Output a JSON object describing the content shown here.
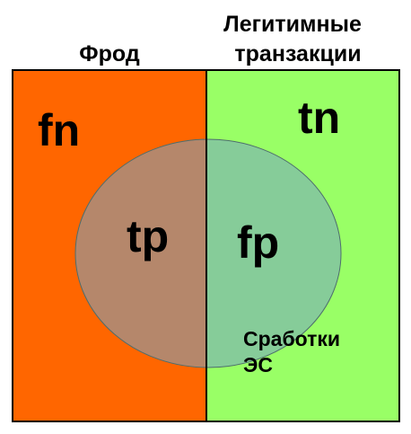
{
  "headers": {
    "fraud": "Фрод",
    "legit_line1": "Легитимные",
    "legit_line2": "транзакции"
  },
  "regions": {
    "fn": "fn",
    "tn": "tn",
    "tp": "tp",
    "fp": "fp"
  },
  "alerts": {
    "line1": "Сработки",
    "line2": "ЭС"
  },
  "colors": {
    "fraud_fill": "#ff6600",
    "legit_fill": "#99ff66",
    "tp_fill": "#b5876b",
    "fp_fill": "#86cc99",
    "border": "#000000",
    "ellipse_stroke": "#4d6d6d"
  }
}
